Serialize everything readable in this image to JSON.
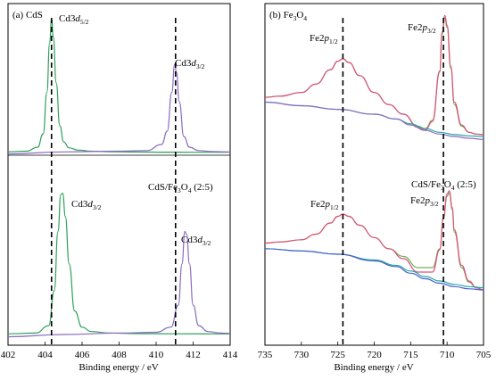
{
  "chart_data": [
    {
      "type": "line",
      "panel_label": {
        "main": "(a) CdS"
      },
      "xlabel": "Binding energy / eV",
      "xlim": [
        402,
        414
      ],
      "x_ticks": [
        402,
        404,
        406,
        408,
        410,
        412,
        414
      ],
      "sample_label_lower": {
        "pre": "CdS/Fe",
        "sub1": "3",
        "mid": "O",
        "sub2": "4",
        "post": " (2:5)"
      },
      "dashed_lines_x": [
        404.35,
        411.05
      ],
      "annotations": [
        {
          "pre": "Cd3",
          "italic": "d",
          "sub": "5/2"
        },
        {
          "pre": "Cd3",
          "italic": "d",
          "sub": "3/2"
        },
        {
          "pre": "Cd3",
          "italic": "d",
          "sub": "3/2"
        },
        {
          "pre": "Cd3",
          "italic": "d",
          "sub": "3/2"
        }
      ],
      "series": [
        {
          "color": "#2ca05a",
          "x": [
            402,
            403,
            403.6,
            403.9,
            404.1,
            404.25,
            404.35,
            404.45,
            404.6,
            404.8,
            405,
            405.3,
            405.8,
            406.5,
            407.5,
            409,
            410.5,
            412,
            414
          ],
          "y": [
            0.006,
            0.01,
            0.04,
            0.14,
            0.45,
            0.82,
            1.0,
            0.86,
            0.52,
            0.2,
            0.08,
            0.035,
            0.018,
            0.01,
            0.006,
            0.004,
            0.003,
            0.002,
            0.002
          ]
        },
        {
          "color": "#8a6bbf",
          "x": [
            402,
            405,
            408,
            409.5,
            410.3,
            410.6,
            410.85,
            411.0,
            411.1,
            411.25,
            411.5,
            411.8,
            412.3,
            413,
            414
          ],
          "y": [
            -0.01,
            0.005,
            0.01,
            0.015,
            0.06,
            0.16,
            0.45,
            0.66,
            0.6,
            0.38,
            0.12,
            0.04,
            0.015,
            0.008,
            0.005
          ]
        },
        {
          "color": "#2ca05a",
          "x": [
            402,
            403.5,
            404.2,
            404.5,
            404.7,
            404.85,
            404.95,
            405.1,
            405.3,
            405.6,
            406,
            406.5,
            407.5,
            409,
            411,
            414
          ],
          "y": [
            0.005,
            0.01,
            0.06,
            0.3,
            0.7,
            0.95,
            0.96,
            0.8,
            0.48,
            0.16,
            0.05,
            0.02,
            0.01,
            0.006,
            0.005,
            0.004
          ]
        },
        {
          "color": "#8a6bbf",
          "x": [
            402,
            405,
            408,
            410,
            410.8,
            411.2,
            411.4,
            411.55,
            411.65,
            411.8,
            412,
            412.3,
            412.8,
            413.5,
            414
          ],
          "y": [
            -0.015,
            0.0,
            0.01,
            0.015,
            0.05,
            0.2,
            0.48,
            0.7,
            0.68,
            0.48,
            0.2,
            0.06,
            0.02,
            0.01,
            0.008
          ]
        }
      ]
    },
    {
      "type": "line",
      "panel_label": {
        "pre": "(b) Fe",
        "sub1": "3",
        "mid": "O",
        "sub2": "4"
      },
      "xlabel": "Binding energy / eV",
      "xlim": [
        735,
        705
      ],
      "x_ticks": [
        735,
        730,
        725,
        720,
        715,
        710,
        705
      ],
      "sample_label_lower": {
        "pre": "CdS/Fe",
        "sub1": "3",
        "mid": "O",
        "sub2": "4",
        "post": " (2:5)"
      },
      "dashed_lines_x": [
        724.3,
        710.5
      ],
      "annotations": [
        {
          "pre": "Fe2",
          "italic": "p",
          "sub": "1/2"
        },
        {
          "pre": "Fe2",
          "italic": "p",
          "sub": "3/2"
        },
        {
          "pre": "Fe2",
          "italic": "p",
          "sub": "1/2"
        },
        {
          "pre": "Fe2",
          "italic": "p",
          "sub": "3/2"
        }
      ],
      "series": [
        {
          "color": "#6db356",
          "x": [
            735,
            733,
            730,
            728,
            726,
            725,
            724.3,
            723.5,
            722,
            720,
            718,
            716,
            714,
            713,
            712,
            711,
            710.7,
            710.3,
            710,
            709.5,
            709,
            708,
            707,
            706,
            705
          ],
          "y": [
            0.34,
            0.35,
            0.38,
            0.45,
            0.57,
            0.64,
            0.66,
            0.63,
            0.52,
            0.38,
            0.28,
            0.2,
            0.1,
            0.08,
            0.15,
            0.55,
            0.86,
            1.0,
            0.92,
            0.58,
            0.28,
            0.1,
            0.05,
            0.035,
            0.03
          ]
        },
        {
          "color": "#e0507a",
          "x": [
            735,
            733,
            730,
            728,
            726,
            725,
            724.3,
            723.5,
            722,
            720,
            718,
            716,
            714,
            713,
            712,
            711,
            710.7,
            710.3,
            710,
            709.5,
            709,
            708,
            707,
            706,
            705
          ],
          "y": [
            0.34,
            0.35,
            0.38,
            0.45,
            0.57,
            0.64,
            0.66,
            0.63,
            0.52,
            0.38,
            0.28,
            0.2,
            0.09,
            0.07,
            0.14,
            0.56,
            0.88,
            1.02,
            0.94,
            0.6,
            0.3,
            0.11,
            0.05,
            0.035,
            0.03
          ]
        },
        {
          "color": "#2aa6a6",
          "x": [
            735,
            730,
            725,
            720,
            717,
            715,
            713,
            711,
            709,
            707,
            705
          ],
          "y": [
            0.3,
            0.27,
            0.24,
            0.2,
            0.16,
            0.12,
            0.08,
            0.05,
            0.03,
            0.02,
            0.015
          ]
        },
        {
          "color": "#8a6bbf",
          "x": [
            735,
            730,
            725,
            720,
            717,
            715,
            713,
            711,
            709,
            707,
            705
          ],
          "y": [
            0.3,
            0.27,
            0.24,
            0.2,
            0.16,
            0.11,
            0.065,
            0.035,
            0.015,
            0.0,
            -0.01
          ]
        },
        {
          "color": "#6db356",
          "x": [
            735,
            733,
            730,
            728,
            726,
            725,
            724.3,
            723.5,
            722,
            720,
            718,
            716,
            714,
            712,
            711,
            710.5,
            710,
            709.7,
            709.3,
            709,
            708,
            707,
            706,
            705
          ],
          "y": [
            0.5,
            0.51,
            0.53,
            0.58,
            0.68,
            0.74,
            0.76,
            0.74,
            0.66,
            0.55,
            0.45,
            0.38,
            0.28,
            0.28,
            0.45,
            0.72,
            0.92,
            0.95,
            0.8,
            0.6,
            0.28,
            0.15,
            0.1,
            0.08
          ]
        },
        {
          "color": "#e0507a",
          "x": [
            735,
            733,
            730,
            728,
            726,
            725,
            724.3,
            723.5,
            722,
            720,
            718,
            716,
            714,
            712,
            711,
            710.5,
            710,
            709.7,
            709.3,
            709,
            708,
            707,
            706,
            705
          ],
          "y": [
            0.5,
            0.51,
            0.53,
            0.58,
            0.68,
            0.74,
            0.76,
            0.74,
            0.66,
            0.55,
            0.45,
            0.36,
            0.24,
            0.24,
            0.44,
            0.73,
            0.94,
            0.97,
            0.82,
            0.62,
            0.3,
            0.16,
            0.1,
            0.08
          ]
        },
        {
          "color": "#2aa6a6",
          "x": [
            735,
            730,
            725,
            720,
            717,
            715,
            713,
            711,
            709,
            707,
            705
          ],
          "y": [
            0.45,
            0.43,
            0.4,
            0.35,
            0.3,
            0.25,
            0.2,
            0.16,
            0.13,
            0.11,
            0.1
          ]
        },
        {
          "color": "#4a5fcf",
          "x": [
            735,
            730,
            725,
            720,
            717,
            715,
            713,
            711,
            709,
            707,
            705
          ],
          "y": [
            0.45,
            0.43,
            0.4,
            0.34,
            0.29,
            0.23,
            0.18,
            0.14,
            0.11,
            0.09,
            0.08
          ]
        }
      ]
    }
  ]
}
